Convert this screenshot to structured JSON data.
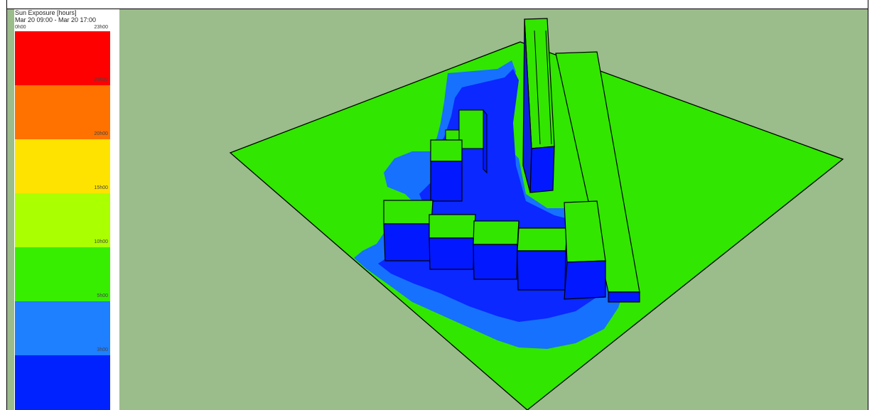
{
  "legend": {
    "title": "Sun Exposure [hours]",
    "range": "Mar 20 09:00 - Mar 20 17:00",
    "min_label": "0h00",
    "max_label": "23h00",
    "bands": [
      {
        "color": "#ff0000",
        "label": "23h00"
      },
      {
        "color": "#ff7200",
        "label": "20h00"
      },
      {
        "color": "#ffe300",
        "label": "15h00"
      },
      {
        "color": "#aaff00",
        "label": "10h00"
      },
      {
        "color": "#37ee00",
        "label": "5h00"
      },
      {
        "color": "#1e7fff",
        "label": "3h00"
      },
      {
        "color": "#0022ff",
        "label": ""
      }
    ]
  },
  "colors": {
    "background": "#9bbc8b",
    "ground": "#31e600",
    "shadow_light": "#1671ff",
    "shadow_dark": "#0a28ff",
    "roof": "#33e600",
    "wall": "#0219ff"
  }
}
